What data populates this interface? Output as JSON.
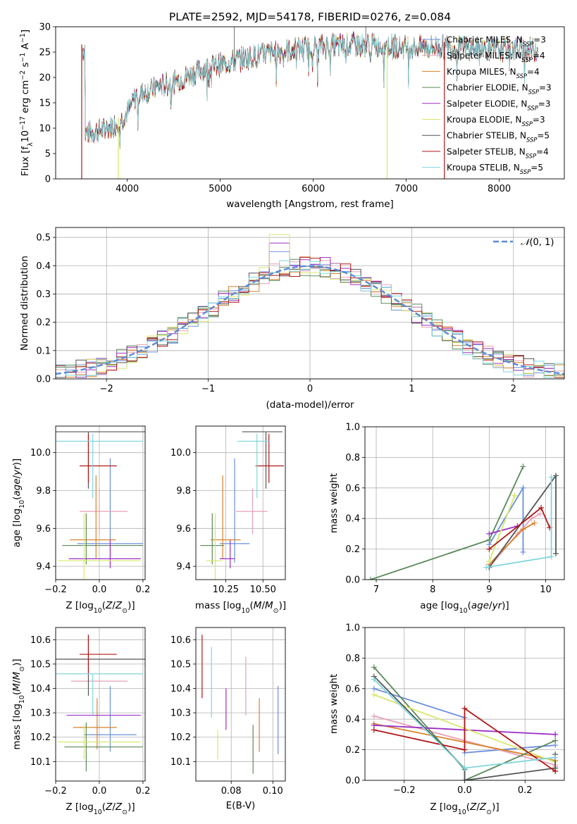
{
  "figure_title": "PLATE=2592, MJD=54178, FIBERID=0276, z=0.084",
  "colors": {
    "Chabrier MILES": "#6a8fdc",
    "Salpeter MILES": "#e8a0b5",
    "Kroupa MILES": "#d9822b",
    "Chabrier ELODIE": "#5a8a5a",
    "Salpeter ELODIE": "#9b30c4",
    "Kroupa ELODIE": "#d7e86a",
    "Chabrier STELIB": "#555555",
    "Salpeter STELIB": "#b01818",
    "Kroupa STELIB": "#80d6dc",
    "normal_curve": "#5b8ad6",
    "grid": "#b0b0b0"
  },
  "chart_data": [
    {
      "id": "spectrum",
      "type": "line",
      "xlabel": "wavelength [Angstrom, rest frame]",
      "ylabel": "Flux [f_λ10^{-17} erg cm^{-2} s^{-1} A^{-1}]",
      "xlim": [
        3230,
        8700
      ],
      "ylim": [
        0,
        30
      ],
      "xticks": [
        4000,
        5000,
        6000,
        7000,
        8000
      ],
      "yticks": [
        0,
        5,
        10,
        15,
        20,
        25,
        30
      ],
      "grid": false,
      "legend_position": "top-right",
      "spectrum_shape": [
        [
          3550,
          9
        ],
        [
          3700,
          9.5
        ],
        [
          3900,
          11
        ],
        [
          4000,
          13
        ],
        [
          4100,
          16.5
        ],
        [
          4300,
          18
        ],
        [
          4500,
          19
        ],
        [
          4800,
          21.5
        ],
        [
          5200,
          23.5
        ],
        [
          5600,
          25
        ],
        [
          6000,
          26
        ],
        [
          6500,
          26.5
        ],
        [
          7000,
          26
        ],
        [
          7400,
          26
        ],
        [
          8000,
          25.5
        ],
        [
          8400,
          25.5
        ]
      ],
      "legend": [
        {
          "name": "Chabrier MILES",
          "nssp": "3"
        },
        {
          "name": "Salpeter MILES",
          "nssp": "4"
        },
        {
          "name": "Kroupa MILES",
          "nssp": "4"
        },
        {
          "name": "Chabrier ELODIE",
          "nssp": "3"
        },
        {
          "name": "Salpeter ELODIE",
          "nssp": "3"
        },
        {
          "name": "Kroupa ELODIE",
          "nssp": "3"
        },
        {
          "name": "Chabrier STELIB",
          "nssp": "5"
        },
        {
          "name": "Salpeter STELIB",
          "nssp": "4"
        },
        {
          "name": "Kroupa STELIB",
          "nssp": "5"
        }
      ]
    },
    {
      "id": "residuals",
      "type": "line",
      "xlabel": "(data-model)/error",
      "ylabel": "Normed distribution",
      "xlim": [
        -2.5,
        2.5
      ],
      "ylim": [
        0,
        0.535
      ],
      "xticks": [
        -2,
        -1,
        0,
        1,
        2
      ],
      "yticks": [
        0.0,
        0.1,
        0.2,
        0.3,
        0.4,
        0.5
      ],
      "grid": true,
      "legend_position": "top-right",
      "legend": [
        "N(0,1)"
      ],
      "bin_width": 0.1,
      "histogram_peaks": {
        "Kroupa ELODIE": 0.51,
        "Salpeter ELODIE": 0.48,
        "Chabrier MILES": 0.45
      }
    },
    {
      "id": "age_vs_Z",
      "type": "scatter",
      "xlabel": "Z [log10(Z/Z_sun)]",
      "ylabel": "age  [log10(age/yr)]",
      "xlim": [
        -0.2,
        0.21
      ],
      "ylim": [
        9.33,
        10.14
      ],
      "xticks": [
        -0.2,
        0.0,
        0.2
      ],
      "yticks": [
        9.4,
        9.6,
        9.8,
        10.0
      ],
      "grid": true,
      "series": [
        {
          "name": "Chabrier MILES",
          "x": 0.05,
          "y": 9.52,
          "xerr": [
            0.15,
            0.15
          ],
          "yerr": [
            0.1,
            0.45
          ]
        },
        {
          "name": "Salpeter MILES",
          "x": 0.0,
          "y": 9.69,
          "xerr": [
            0.09,
            0.13
          ],
          "yerr": [
            0.12,
            0.12
          ]
        },
        {
          "name": "Kroupa MILES",
          "x": -0.015,
          "y": 9.54,
          "xerr": [
            0.12,
            0.09
          ],
          "yerr": [
            0.1,
            0.34
          ]
        },
        {
          "name": "Chabrier ELODIE",
          "x": -0.06,
          "y": 9.51,
          "xerr": [
            0.11,
            0.26
          ],
          "yerr": [
            0.1,
            0.17
          ]
        },
        {
          "name": "Salpeter ELODIE",
          "x": 0.05,
          "y": 9.44,
          "xerr": [
            0.19,
            0.14
          ],
          "yerr": [
            0.05,
            0.1
          ]
        },
        {
          "name": "Kroupa ELODIE",
          "x": -0.07,
          "y": 9.43,
          "xerr": [
            0.12,
            0.26
          ],
          "yerr": [
            0.1,
            0.25
          ]
        },
        {
          "name": "Chabrier STELIB",
          "x": -0.05,
          "y": 10.11,
          "xerr": [
            0.17,
            0.26
          ],
          "yerr": [
            0.3,
            0.0
          ]
        },
        {
          "name": "Salpeter STELIB",
          "x": -0.05,
          "y": 9.93,
          "xerr": [
            0.04,
            0.13
          ],
          "yerr": [
            0.09,
            0.17
          ]
        },
        {
          "name": "Kroupa STELIB",
          "x": -0.03,
          "y": 10.06,
          "xerr": [
            0.17,
            0.23
          ],
          "yerr": [
            0.3,
            0.04
          ]
        }
      ]
    },
    {
      "id": "age_vs_mass",
      "type": "scatter",
      "xlabel": "mass [log10(M/M_sun)]",
      "ylabel": "",
      "xlim": [
        10.05,
        10.65
      ],
      "ylim": [
        9.33,
        10.14
      ],
      "xticks": [
        10.25,
        10.5
      ],
      "yticks": [
        9.4,
        9.6,
        9.8,
        10.0
      ],
      "grid": true,
      "series": [
        {
          "name": "Chabrier MILES",
          "x": 10.31,
          "y": 9.52,
          "xerr": [
            0.1,
            0.1
          ],
          "yerr": [
            0.1,
            0.45
          ]
        },
        {
          "name": "Salpeter MILES",
          "x": 10.43,
          "y": 9.69,
          "xerr": [
            0.11,
            0.1
          ],
          "yerr": [
            0.12,
            0.12
          ]
        },
        {
          "name": "Kroupa MILES",
          "x": 10.23,
          "y": 9.54,
          "xerr": [
            0.08,
            0.12
          ],
          "yerr": [
            0.1,
            0.34
          ]
        },
        {
          "name": "Chabrier ELODIE",
          "x": 10.16,
          "y": 9.51,
          "xerr": [
            0.08,
            0.08
          ],
          "yerr": [
            0.1,
            0.17
          ]
        },
        {
          "name": "Salpeter ELODIE",
          "x": 10.28,
          "y": 9.44,
          "xerr": [
            0.07,
            0.03
          ],
          "yerr": [
            0.05,
            0.1
          ]
        },
        {
          "name": "Kroupa ELODIE",
          "x": 10.18,
          "y": 9.43,
          "xerr": [
            0.06,
            0.05
          ],
          "yerr": [
            0.1,
            0.25
          ]
        },
        {
          "name": "Chabrier STELIB",
          "x": 10.52,
          "y": 10.11,
          "xerr": [
            0.16,
            0.11
          ],
          "yerr": [
            0.3,
            0.0
          ]
        },
        {
          "name": "Salpeter STELIB",
          "x": 10.54,
          "y": 9.93,
          "xerr": [
            0.09,
            0.1
          ],
          "yerr": [
            0.09,
            0.17
          ]
        },
        {
          "name": "Kroupa STELIB",
          "x": 10.46,
          "y": 10.06,
          "xerr": [
            0.13,
            0.08
          ],
          "yerr": [
            0.3,
            0.04
          ]
        }
      ]
    },
    {
      "id": "weight_vs_age",
      "type": "line",
      "xlabel": "age  [log10(age/yr)]",
      "ylabel": "mass weight",
      "xlim": [
        6.8,
        10.33
      ],
      "ylim": [
        0.0,
        1.0
      ],
      "xticks": [
        7,
        8,
        9,
        10
      ],
      "yticks": [
        0.0,
        0.2,
        0.4,
        0.6,
        0.8,
        1.0
      ],
      "grid": true,
      "series": [
        {
          "name": "Chabrier MILES",
          "x": [
            9.0,
            9.6,
            9.6
          ],
          "y": [
            0.23,
            0.6,
            0.18
          ]
        },
        {
          "name": "Salpeter MILES",
          "x": [
            9.0,
            9.5,
            9.75,
            9.9
          ],
          "y": [
            0.08,
            0.3,
            0.4,
            0.43
          ]
        },
        {
          "name": "Kroupa MILES",
          "x": [
            9.0,
            9.6,
            9.8
          ],
          "y": [
            0.1,
            0.33,
            0.37
          ]
        },
        {
          "name": "Chabrier ELODIE",
          "x": [
            6.9,
            9.0,
            9.6
          ],
          "y": [
            0.0,
            0.26,
            0.74
          ]
        },
        {
          "name": "Salpeter ELODIE",
          "x": [
            9.0,
            9.5,
            9.5
          ],
          "y": [
            0.3,
            0.35,
            0.35
          ]
        },
        {
          "name": "Kroupa ELODIE",
          "x": [
            9.0,
            9.45,
            9.45
          ],
          "y": [
            0.12,
            0.55,
            0.55
          ]
        },
        {
          "name": "Chabrier STELIB",
          "x": [
            9.0,
            10.18,
            10.18
          ],
          "y": [
            0.08,
            0.68,
            0.17
          ]
        },
        {
          "name": "Salpeter STELIB",
          "x": [
            9.0,
            9.92,
            10.07
          ],
          "y": [
            0.2,
            0.47,
            0.34
          ]
        },
        {
          "name": "Kroupa STELIB",
          "x": [
            8.95,
            10.1,
            10.1
          ],
          "y": [
            0.08,
            0.15,
            0.67
          ]
        }
      ]
    },
    {
      "id": "mass_vs_Z",
      "type": "scatter",
      "xlabel": "Z [log10(Z/Z_sun)]",
      "ylabel": "mass [log10(M/M_sun)]",
      "xlim": [
        -0.2,
        0.21
      ],
      "ylim": [
        10.02,
        10.65
      ],
      "xticks": [
        -0.2,
        0.0,
        0.2
      ],
      "yticks": [
        10.1,
        10.2,
        10.3,
        10.4,
        10.5,
        10.6
      ],
      "grid": true,
      "series": [
        {
          "name": "Chabrier MILES",
          "x": 0.05,
          "y": 10.21,
          "xerr": [
            0.12,
            0.12
          ],
          "yerr": [
            0.07,
            0.2
          ]
        },
        {
          "name": "Salpeter MILES",
          "x": 0.0,
          "y": 10.43,
          "xerr": [
            0.13,
            0.13
          ],
          "yerr": [
            0.0,
            0.0
          ]
        },
        {
          "name": "Kroupa MILES",
          "x": -0.01,
          "y": 10.24,
          "xerr": [
            0.11,
            0.09
          ],
          "yerr": [
            0.09,
            0.12
          ]
        },
        {
          "name": "Chabrier ELODIE",
          "x": -0.06,
          "y": 10.16,
          "xerr": [
            0.1,
            0.26
          ],
          "yerr": [
            0.1,
            0.1
          ]
        },
        {
          "name": "Salpeter ELODIE",
          "x": 0.05,
          "y": 10.29,
          "xerr": [
            0.2,
            0.14
          ],
          "yerr": [
            0.0,
            0.0
          ]
        },
        {
          "name": "Kroupa ELODIE",
          "x": -0.07,
          "y": 10.18,
          "xerr": [
            0.12,
            0.26
          ],
          "yerr": [
            0.07,
            0.07
          ]
        },
        {
          "name": "Chabrier STELIB",
          "x": -0.05,
          "y": 10.52,
          "xerr": [
            0.17,
            0.26
          ],
          "yerr": [
            0.15,
            0.1
          ]
        },
        {
          "name": "Salpeter STELIB",
          "x": -0.05,
          "y": 10.54,
          "xerr": [
            0.04,
            0.13
          ],
          "yerr": [
            0.08,
            0.08
          ]
        },
        {
          "name": "Kroupa STELIB",
          "x": -0.03,
          "y": 10.46,
          "xerr": [
            0.17,
            0.23
          ],
          "yerr": [
            0.17,
            0.0
          ]
        }
      ]
    },
    {
      "id": "mass_vs_ebv",
      "type": "scatter",
      "xlabel": "E(B-V)",
      "ylabel": "",
      "xlim": [
        0.063,
        0.106
      ],
      "ylim": [
        10.02,
        10.65
      ],
      "xticks": [
        0.08,
        0.1
      ],
      "yticks": [
        10.1,
        10.2,
        10.3,
        10.4,
        10.5,
        10.6
      ],
      "grid": true,
      "series": [
        {
          "name": "Salpeter STELIB",
          "x": 0.066,
          "y": 10.49,
          "yerr": [
            0.13,
            0.13
          ]
        },
        {
          "name": "Kroupa STELIB",
          "x": 0.0705,
          "y": 10.43,
          "yerr": [
            0.15,
            0.14
          ]
        },
        {
          "name": "Kroupa ELODIE",
          "x": 0.0735,
          "y": 10.17,
          "yerr": [
            0.06,
            0.06
          ]
        },
        {
          "name": "Salpeter ELODIE",
          "x": 0.0775,
          "y": 10.31,
          "yerr": [
            0.08,
            0.09
          ]
        },
        {
          "name": "Salpeter MILES",
          "x": 0.087,
          "y": 10.41,
          "yerr": [
            0.12,
            0.12
          ]
        },
        {
          "name": "Chabrier ELODIE",
          "x": 0.0905,
          "y": 10.15,
          "yerr": [
            0.1,
            0.1
          ]
        },
        {
          "name": "Kroupa MILES",
          "x": 0.0935,
          "y": 10.25,
          "yerr": [
            0.11,
            0.11
          ]
        },
        {
          "name": "Chabrier MILES",
          "x": 0.1025,
          "y": 10.27,
          "yerr": [
            0.14,
            0.14
          ]
        }
      ]
    },
    {
      "id": "weight_vs_Z",
      "type": "line",
      "xlabel": "Z [log10(Z/Z_sun)]",
      "ylabel": "mass weight",
      "xlim": [
        -0.33,
        0.33
      ],
      "ylim": [
        0.0,
        1.0
      ],
      "xticks": [
        -0.2,
        0.0,
        0.2
      ],
      "yticks": [
        0.0,
        0.2,
        0.4,
        0.6,
        0.8,
        1.0
      ],
      "grid": true,
      "series": [
        {
          "name": "Chabrier MILES",
          "x": [
            -0.3,
            0.0,
            0.0,
            0.3
          ],
          "y": [
            0.6,
            0.41,
            0.18,
            0.23
          ]
        },
        {
          "name": "Salpeter MILES",
          "x": [
            -0.3,
            0.3,
            0.3
          ],
          "y": [
            0.42,
            0.1,
            0.09
          ]
        },
        {
          "name": "Kroupa MILES",
          "x": [
            -0.3,
            0.3,
            0.3
          ],
          "y": [
            0.37,
            0.13,
            0.12
          ]
        },
        {
          "name": "Chabrier ELODIE",
          "x": [
            -0.3,
            0.0,
            0.0,
            0.3,
            0.3
          ],
          "y": [
            0.74,
            0.07,
            0.0,
            0.26,
            0.26
          ]
        },
        {
          "name": "Salpeter ELODIE",
          "x": [
            -0.3,
            0.3,
            0.3
          ],
          "y": [
            0.36,
            0.3,
            0.3
          ]
        },
        {
          "name": "Kroupa ELODIE",
          "x": [
            -0.3,
            0.3,
            0.3
          ],
          "y": [
            0.56,
            0.12,
            0.12
          ]
        },
        {
          "name": "Chabrier STELIB",
          "x": [
            -0.3,
            0.0,
            0.0,
            0.3,
            0.3
          ],
          "y": [
            0.68,
            0.08,
            0.0,
            0.08,
            0.17
          ]
        },
        {
          "name": "Salpeter STELIB",
          "x": [
            -0.3,
            0.0,
            0.0,
            0.3,
            0.3
          ],
          "y": [
            0.33,
            0.2,
            0.47,
            0.06,
            0.06
          ]
        },
        {
          "name": "Kroupa STELIB",
          "x": [
            -0.3,
            0.0,
            0.3,
            0.3
          ],
          "y": [
            0.66,
            0.08,
            0.15,
            0.15
          ]
        }
      ]
    }
  ]
}
